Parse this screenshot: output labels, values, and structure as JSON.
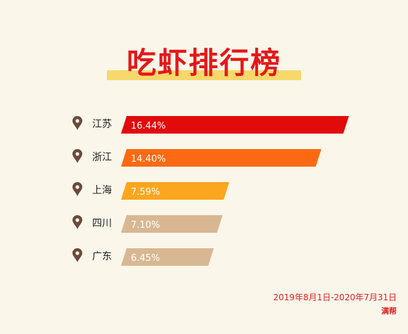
{
  "title": "吃虾排行榜",
  "footer": {
    "date_range": "2019年8月1日-2020年7月31日",
    "brand": "满帮"
  },
  "chart_data": {
    "type": "bar",
    "orientation": "horizontal",
    "categories": [
      "江苏",
      "浙江",
      "上海",
      "四川",
      "广东"
    ],
    "values": [
      16.44,
      14.4,
      7.59,
      7.1,
      6.45
    ],
    "value_labels": [
      "16.44%",
      "14.40%",
      "7.59%",
      "7.10%",
      "6.45%"
    ],
    "colors": [
      "#e10b0b",
      "#fb6a13",
      "#fba61e",
      "#d8b893",
      "#d8b893"
    ],
    "xlim": [
      0,
      16.44
    ],
    "grid": false,
    "legend": "none",
    "marker_color": "#6b4a3e"
  }
}
